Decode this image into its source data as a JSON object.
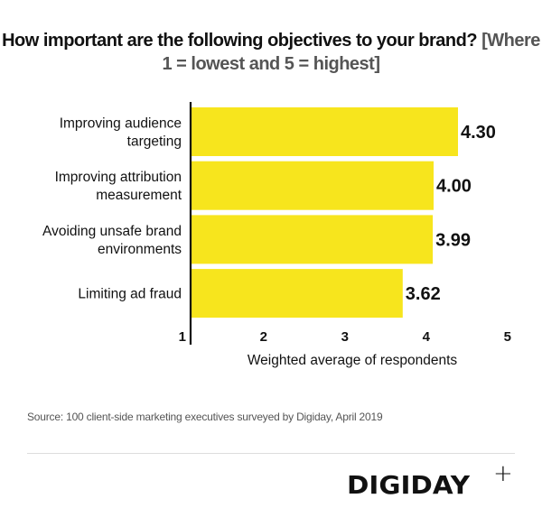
{
  "chart_data": {
    "type": "bar",
    "orientation": "horizontal",
    "title": "How important are the following objectives to your brand?",
    "subtitle": "[Where 1 = lowest and 5 = highest]",
    "categories": [
      [
        "Improving audience",
        "targeting"
      ],
      [
        "Improving attribution",
        "measurement"
      ],
      [
        "Avoiding unsafe brand",
        "environments"
      ],
      [
        "Limiting ad fraud"
      ]
    ],
    "values": [
      4.3,
      4.0,
      3.99,
      3.62
    ],
    "value_labels": [
      "4.30",
      "4.00",
      "3.99",
      "3.62"
    ],
    "xlabel": "Weighted average of respondents",
    "ylabel": "",
    "xlim": [
      1,
      5
    ],
    "xticks": [
      "1",
      "2",
      "3",
      "4",
      "5"
    ],
    "grid": false,
    "bar_color": "#f7e51d",
    "axis_color": "#111111"
  },
  "source": "Source: 100 client-side marketing executives surveyed by Digiday, April 2019",
  "brand": {
    "name": "DIGIDAY",
    "mark": "+"
  }
}
